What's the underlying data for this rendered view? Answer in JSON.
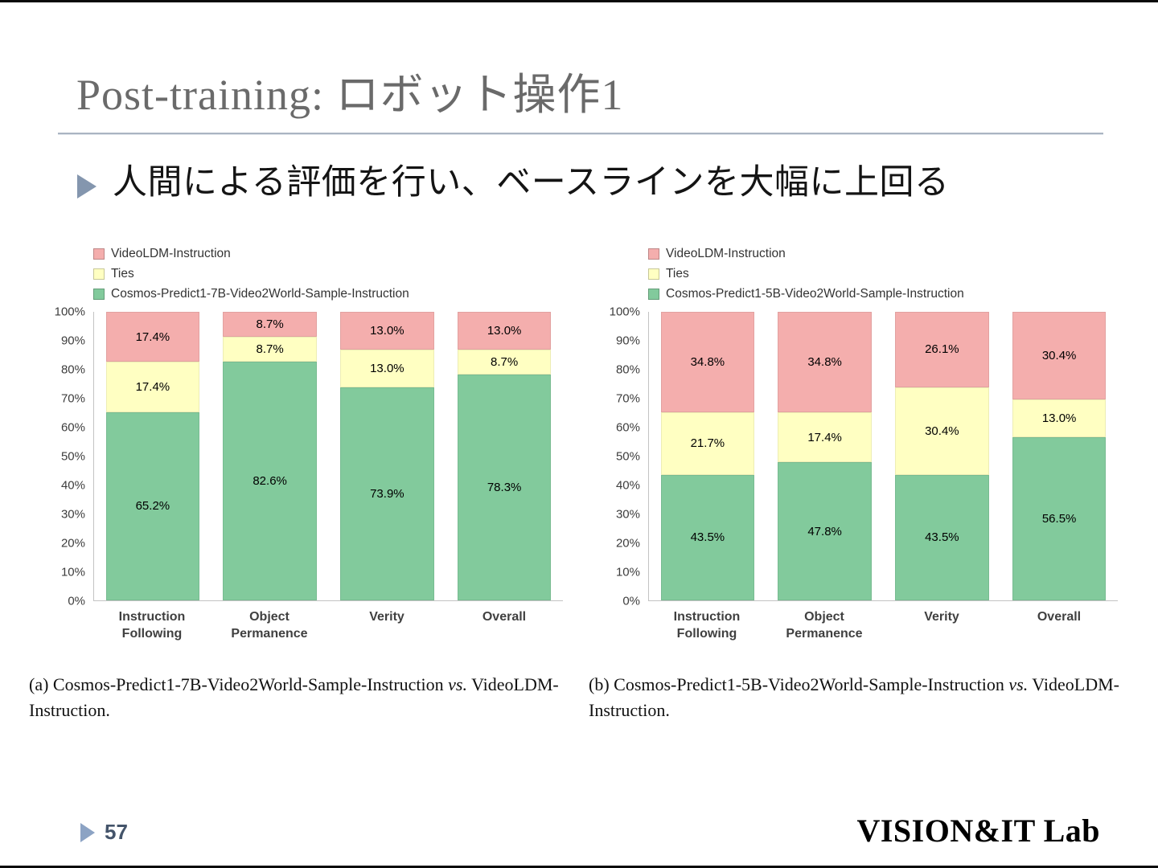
{
  "slide": {
    "title": "Post-training: ロボット操作1",
    "bullet": "人間による評価を行い、ベースラインを大幅に上回る",
    "page_number": "57",
    "logo": "VISION&IT Lab"
  },
  "captions": {
    "a": {
      "pre": "(a) Cosmos-Predict1-7B-Video2World-Sample-Instruction ",
      "vs": "vs.",
      "post": " VideoLDM-Instruction."
    },
    "b": {
      "pre": "(b) Cosmos-Predict1-5B-Video2World-Sample-Instruction ",
      "vs": "vs.",
      "post": " VideoLDM-Instruction."
    }
  },
  "chart_data": [
    {
      "type": "bar",
      "stacked": true,
      "legend_position": "top-left",
      "grid": false,
      "ylim": [
        0,
        100
      ],
      "ytick_step": 10,
      "ytick_suffix": "%",
      "categories": [
        "Instruction\nFollowing",
        "Object\nPermanence",
        "Verity",
        "Overall"
      ],
      "series": [
        {
          "name": "VideoLDM-Instruction",
          "color": "#F4AEAD",
          "values": [
            17.4,
            8.7,
            13.0,
            13.0
          ]
        },
        {
          "name": "Ties",
          "color": "#FFFFC2",
          "values": [
            17.4,
            8.7,
            13.0,
            8.7
          ]
        },
        {
          "name": "Cosmos-Predict1-7B-Video2World-Sample-Instruction",
          "color": "#82CA9C",
          "values": [
            65.2,
            82.6,
            73.9,
            78.3
          ]
        }
      ]
    },
    {
      "type": "bar",
      "stacked": true,
      "legend_position": "top-left",
      "grid": false,
      "ylim": [
        0,
        100
      ],
      "ytick_step": 10,
      "ytick_suffix": "%",
      "categories": [
        "Instruction\nFollowing",
        "Object\nPermanence",
        "Verity",
        "Overall"
      ],
      "series": [
        {
          "name": "VideoLDM-Instruction",
          "color": "#F4AEAD",
          "values": [
            34.8,
            34.8,
            26.1,
            30.4
          ]
        },
        {
          "name": "Ties",
          "color": "#FFFFC2",
          "values": [
            21.7,
            17.4,
            30.4,
            13.0
          ]
        },
        {
          "name": "Cosmos-Predict1-5B-Video2World-Sample-Instruction",
          "color": "#82CA9C",
          "values": [
            43.5,
            47.8,
            43.5,
            56.5
          ]
        }
      ]
    }
  ]
}
